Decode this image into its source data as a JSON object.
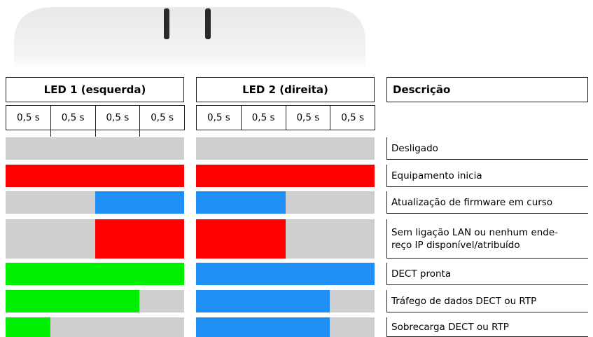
{
  "header": {
    "led1": "LED 1 (esquerda)",
    "led2": "LED 2 (direita)",
    "description": "Descrição"
  },
  "intervals": {
    "led1": [
      "0,5 s",
      "0,5 s",
      "0,5 s",
      "0,5 s"
    ],
    "led2": [
      "0,5 s",
      "0,5 s",
      "0,5 s",
      "0,5 s"
    ]
  },
  "rows": [
    {
      "description": [
        "Desligado"
      ]
    },
    {
      "description": [
        "Equipamento inicia"
      ]
    },
    {
      "description": [
        "Atualização de firmware em curso"
      ]
    },
    {
      "description": [
        "Sem ligação LAN ou nenhum ende-",
        "reço IP disponível/atribuído"
      ]
    },
    {
      "description": [
        "DECT pronta"
      ]
    },
    {
      "description": [
        "Tráfego de dados DECT ou RTP"
      ]
    },
    {
      "description": [
        "Sobrecarga DECT ou RTP"
      ]
    }
  ]
}
